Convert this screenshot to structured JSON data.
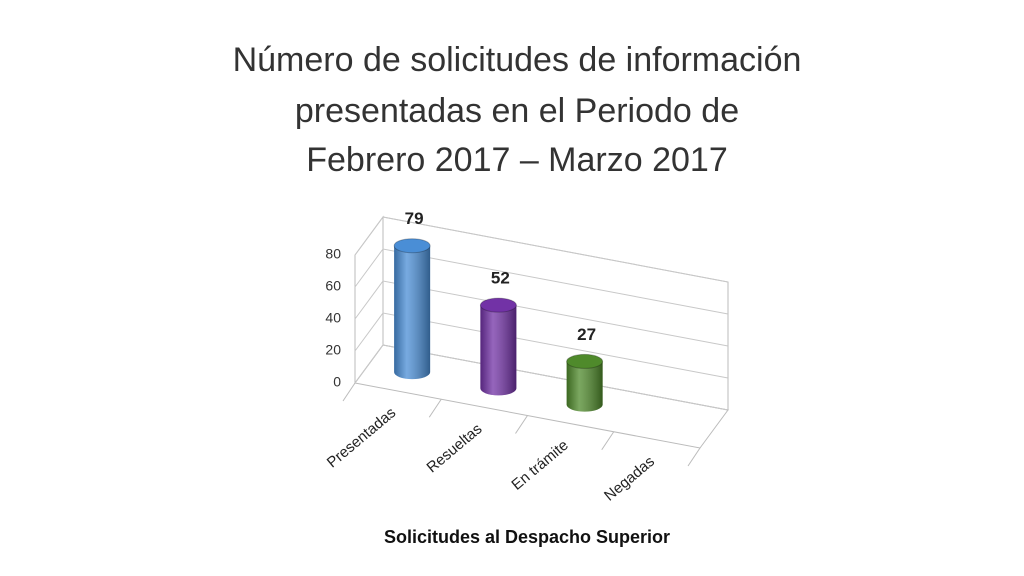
{
  "chart_data": {
    "type": "bar3d",
    "title": [
      "Número de solicitudes de información",
      "presentadas en el Periodo de",
      "Febrero 2017 – Marzo 2017"
    ],
    "x_label": "Solicitudes al Despacho Superior",
    "categories": [
      "Presentadas",
      "Resueltas",
      "En trámite",
      "Negadas"
    ],
    "values": [
      79,
      52,
      27,
      null
    ],
    "colors": [
      "#4a8ed6",
      "#7232a6",
      "#4f8a2b",
      "#888888"
    ],
    "ylim": [
      0,
      80
    ],
    "yticks": [
      0,
      20,
      40,
      60,
      80
    ],
    "grid": true,
    "data_labels": true
  }
}
